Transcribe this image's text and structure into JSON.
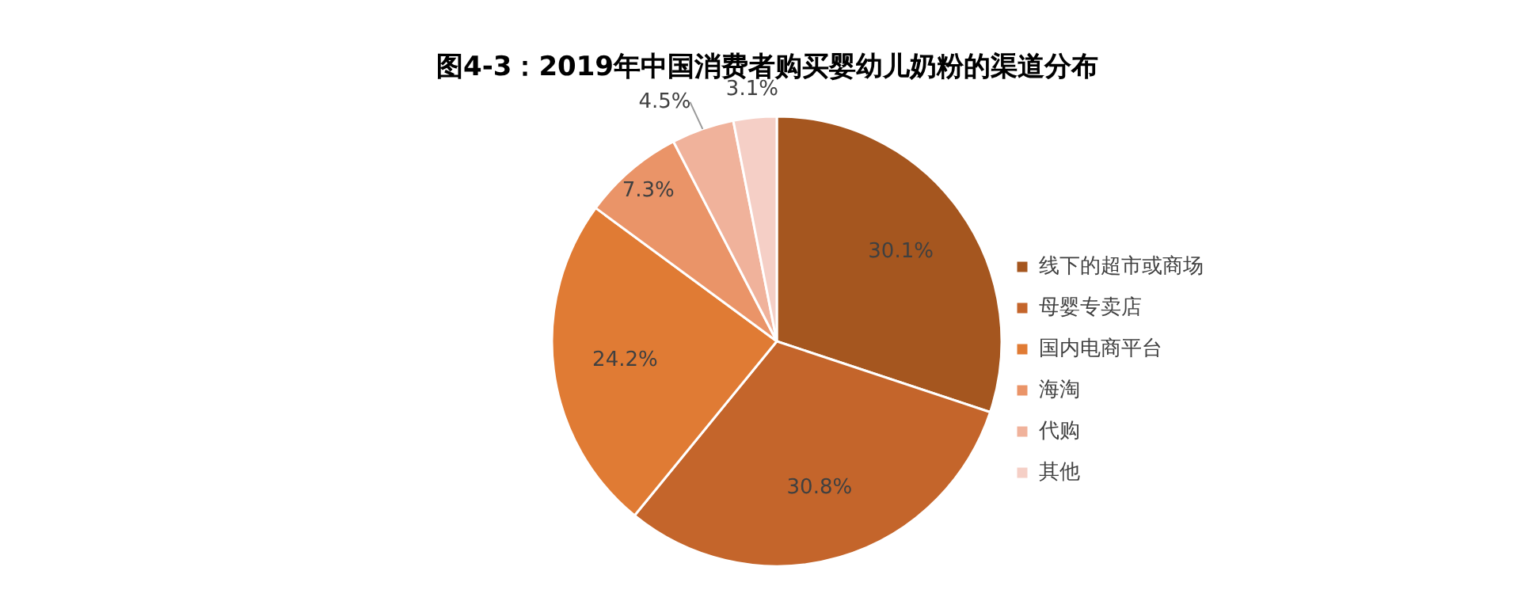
{
  "chart_data": {
    "type": "pie",
    "title": "图4-3：2019年中国消费者购买婴幼儿奶粉的渠道分布",
    "categories": [
      "线下的超市或商场",
      "母婴专卖店",
      "国内电商平台",
      "海淘",
      "代购",
      "其他"
    ],
    "values": [
      30.1,
      30.8,
      24.2,
      7.3,
      4.5,
      3.1
    ],
    "value_labels": [
      "30.1%",
      "30.8%",
      "24.2%",
      "7.3%",
      "4.5%",
      "3.1%"
    ],
    "colors": [
      "#a5561f",
      "#c4652b",
      "#e07b34",
      "#ea9468",
      "#f0b29b",
      "#f5cfc6"
    ],
    "legend": "right"
  }
}
